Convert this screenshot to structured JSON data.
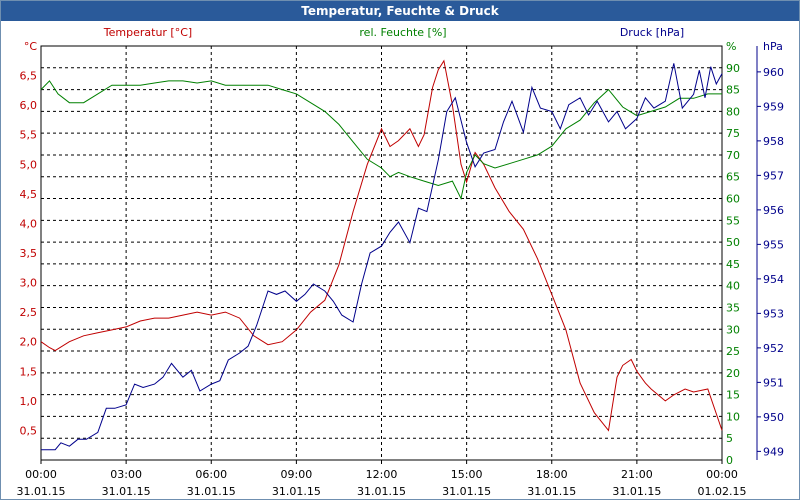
{
  "title": "Temperatur, Feuchte & Druck",
  "colors": {
    "temperature": "#c00000",
    "humidity": "#008000",
    "pressure": "#00008b",
    "grid": "#000000",
    "titlebar": "#2a5a9a"
  },
  "chart_data": {
    "type": "line",
    "title": "Temperatur, Feuchte & Druck",
    "grid": true,
    "x": {
      "range": [
        "00:00",
        "24:00"
      ],
      "tick_time_labels": [
        "00:00",
        "03:00",
        "06:00",
        "09:00",
        "12:00",
        "15:00",
        "18:00",
        "21:00",
        "00:00"
      ],
      "tick_date_labels": [
        "31.01.15",
        "31.01.15",
        "31.01.15",
        "31.01.15",
        "31.01.15",
        "31.01.15",
        "31.01.15",
        "31.01.15",
        "01.02.15"
      ]
    },
    "axes": {
      "temperature": {
        "label": "Temperatur [°C]",
        "unit": "°C",
        "range": [
          0,
          7
        ],
        "ticks": [
          "0,5",
          "1,0",
          "1,5",
          "2,0",
          "2,5",
          "3,0",
          "3,5",
          "4,0",
          "4,5",
          "5,0",
          "5,5",
          "6,0",
          "6,5"
        ]
      },
      "humidity": {
        "label": "rel. Feuchte [%]",
        "unit": "%",
        "range": [
          0,
          95
        ],
        "ticks": [
          "0",
          "5",
          "10",
          "15",
          "20",
          "25",
          "30",
          "35",
          "40",
          "45",
          "50",
          "55",
          "60",
          "65",
          "70",
          "75",
          "80",
          "85",
          "90"
        ]
      },
      "pressure": {
        "label": "Druck [hPa]",
        "unit": "hPa",
        "range": [
          949,
          961
        ],
        "ticks": [
          "949",
          "950",
          "951",
          "952",
          "953",
          "954",
          "955",
          "956",
          "957",
          "958",
          "959",
          "960"
        ]
      }
    },
    "series": [
      {
        "name": "Temperatur [°C]",
        "axis": "temperature",
        "x": [
          0,
          0.3,
          0.5,
          1,
          1.5,
          2,
          2.5,
          3,
          3.5,
          4,
          4.5,
          5,
          5.5,
          6,
          6.5,
          7,
          7.5,
          8,
          8.5,
          9,
          9.5,
          10,
          10.5,
          11,
          11.5,
          12,
          12.3,
          12.6,
          13,
          13.3,
          13.5,
          13.8,
          14,
          14.2,
          14.5,
          14.8,
          15,
          15.3,
          15.6,
          16,
          16.5,
          17,
          17.5,
          18,
          18.5,
          19,
          19.5,
          20,
          20.3,
          20.5,
          20.8,
          21,
          21.3,
          21.5,
          22,
          22.3,
          22.7,
          23,
          23.5,
          24
        ],
        "values": [
          2.0,
          1.9,
          1.85,
          2.0,
          2.1,
          2.15,
          2.2,
          2.25,
          2.35,
          2.4,
          2.4,
          2.45,
          2.5,
          2.45,
          2.5,
          2.4,
          2.1,
          1.95,
          2.0,
          2.2,
          2.5,
          2.7,
          3.3,
          4.2,
          5.0,
          5.6,
          5.3,
          5.4,
          5.6,
          5.3,
          5.5,
          6.3,
          6.6,
          6.75,
          6.0,
          5.0,
          4.7,
          5.2,
          5.0,
          4.6,
          4.2,
          3.9,
          3.4,
          2.8,
          2.2,
          1.3,
          0.8,
          0.5,
          1.4,
          1.6,
          1.7,
          1.5,
          1.3,
          1.2,
          1.0,
          1.1,
          1.2,
          1.15,
          1.2,
          0.5
        ]
      },
      {
        "name": "rel. Feuchte [%]",
        "axis": "humidity",
        "x": [
          0,
          0.3,
          0.6,
          1,
          1.5,
          2,
          2.5,
          3,
          3.5,
          4,
          4.5,
          5,
          5.5,
          6,
          6.5,
          7,
          7.5,
          8,
          8.5,
          9,
          9.5,
          10,
          10.5,
          11,
          11.5,
          12,
          12.3,
          12.6,
          13,
          13.5,
          14,
          14.5,
          14.8,
          15,
          15.3,
          15.6,
          16,
          16.5,
          17,
          17.5,
          18,
          18.5,
          19,
          19.5,
          20,
          20.5,
          21,
          21.5,
          22,
          22.5,
          23,
          23.5,
          24
        ],
        "values": [
          85,
          87,
          84,
          82,
          82,
          84,
          86,
          86,
          86,
          86.5,
          87,
          87,
          86.5,
          87,
          86,
          86,
          86,
          86,
          85,
          84,
          82,
          80,
          77,
          73,
          69,
          67,
          65,
          66,
          65,
          64,
          63,
          64,
          60,
          66,
          70,
          68,
          67,
          68,
          69,
          70,
          72,
          76,
          78,
          82,
          85,
          81,
          79,
          80,
          81,
          83,
          83,
          84,
          84
        ]
      },
      {
        "name": "Druck [hPa]",
        "axis": "pressure",
        "x": [
          0,
          0.5,
          0.7,
          1,
          1.3,
          1.6,
          2,
          2.3,
          2.6,
          3,
          3.3,
          3.6,
          4,
          4.3,
          4.6,
          5,
          5.3,
          5.6,
          6,
          6.3,
          6.6,
          7,
          7.3,
          7.6,
          8,
          8.3,
          8.6,
          9,
          9.3,
          9.6,
          10,
          10.3,
          10.6,
          11,
          11.3,
          11.6,
          12,
          12.3,
          12.6,
          13,
          13.3,
          13.6,
          14,
          14.3,
          14.6,
          15,
          15.3,
          15.6,
          16,
          16.3,
          16.6,
          17,
          17.3,
          17.6,
          18,
          18.3,
          18.6,
          19,
          19.3,
          19.6,
          20,
          20.3,
          20.6,
          21,
          21.3,
          21.6,
          22,
          22.3,
          22.6,
          23,
          23.2,
          23.4,
          23.6,
          23.8,
          24
        ],
        "values": [
          949.3,
          949.3,
          949.5,
          949.4,
          949.6,
          949.6,
          949.8,
          950.5,
          950.5,
          950.6,
          951.2,
          951.1,
          951.2,
          951.4,
          951.8,
          951.4,
          951.6,
          951.0,
          951.2,
          951.3,
          951.9,
          952.1,
          952.3,
          952.9,
          953.9,
          953.8,
          953.9,
          953.6,
          953.8,
          954.1,
          953.9,
          953.6,
          953.2,
          953.0,
          954.1,
          955.0,
          955.2,
          955.6,
          955.9,
          955.3,
          956.3,
          956.2,
          957.7,
          959.1,
          959.5,
          958.2,
          957.5,
          957.9,
          958.0,
          958.8,
          959.4,
          958.5,
          959.8,
          959.2,
          959.1,
          958.6,
          959.3,
          959.5,
          959.0,
          959.4,
          958.8,
          959.1,
          958.6,
          958.9,
          959.5,
          959.2,
          959.4,
          960.5,
          959.2,
          959.6,
          960.3,
          959.5,
          960.4,
          959.9,
          960.2
        ]
      }
    ]
  }
}
